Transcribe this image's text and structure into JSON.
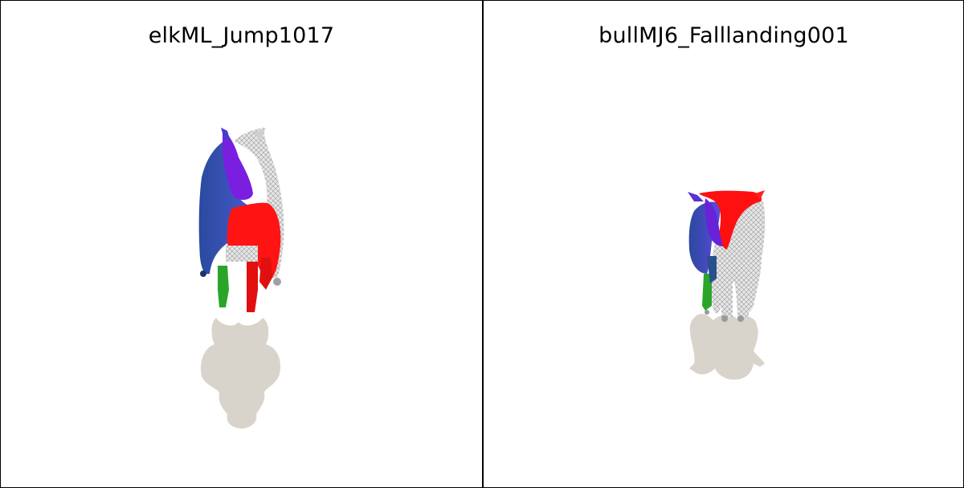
{
  "panels": [
    {
      "title": "elkML_Jump1017"
    },
    {
      "title": "bullMJ6_Falllanding001"
    }
  ],
  "colors": {
    "blue": "#2f4fb0",
    "purple": "#7a1fe0",
    "red": "#ff1010",
    "green": "#2aa52a",
    "mesh_gray": "#d6d6d6",
    "shadow": "#d8d4cc"
  }
}
